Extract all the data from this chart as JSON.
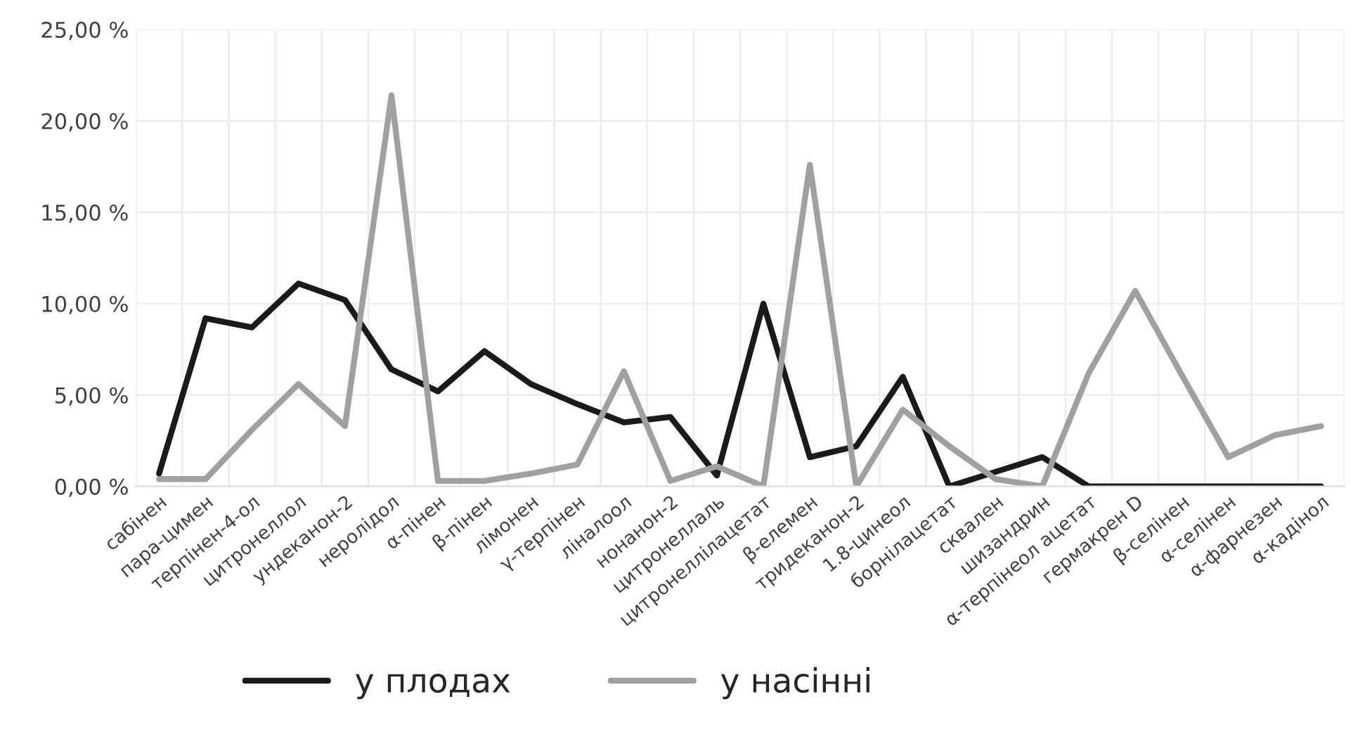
{
  "chart_data": {
    "type": "line",
    "categories": [
      "сабінен",
      "пара-цимен",
      "терпінен-4-ол",
      "цитронеллол",
      "ундеканон-2",
      "неролідол",
      "α-пінен",
      "β-пінен",
      "лімонен",
      "γ-терпінен",
      "ліналоол",
      "нонанон-2",
      "цитронеллаль",
      "цитронеллілацетат",
      "β-елемен",
      "тридеканон-2",
      "1.8-цинеол",
      "борнілацетат",
      "сквален",
      "шизандрин",
      "α-терпінеол ацетат",
      "гермакрен D",
      "β-селінен",
      "α-селінен",
      "α-фарнезен",
      "α-кадінол"
    ],
    "series": [
      {
        "name": "у плодах",
        "color": "#1a1a1a",
        "values": [
          0.7,
          9.2,
          8.7,
          11.1,
          10.2,
          6.4,
          5.2,
          7.4,
          5.6,
          4.5,
          3.5,
          3.8,
          0.6,
          10.0,
          1.6,
          2.2,
          6.0,
          0.0,
          0.8,
          1.6,
          0.0,
          0.0,
          0.0,
          0.0,
          0.0,
          0.0
        ]
      },
      {
        "name": "у насінні",
        "color": "#a0a0a0",
        "values": [
          0.4,
          0.4,
          3.1,
          5.6,
          3.3,
          21.4,
          0.3,
          0.3,
          0.7,
          1.2,
          6.3,
          0.3,
          1.1,
          0.0,
          17.6,
          0.0,
          4.2,
          2.2,
          0.4,
          0.0,
          6.2,
          10.7,
          6.1,
          1.6,
          2.8,
          3.3
        ]
      }
    ],
    "ylim": [
      0,
      25
    ],
    "yticks": [
      {
        "value": 0,
        "label": "0,00 %"
      },
      {
        "value": 5,
        "label": "5,00 %"
      },
      {
        "value": 10,
        "label": "10,00 %"
      },
      {
        "value": 15,
        "label": "15,00 %"
      },
      {
        "value": 20,
        "label": "20,00 %"
      },
      {
        "value": 25,
        "label": "25,00 %"
      }
    ],
    "grid": true,
    "legend": "bottom",
    "marker": "none",
    "line_style": "solid"
  }
}
